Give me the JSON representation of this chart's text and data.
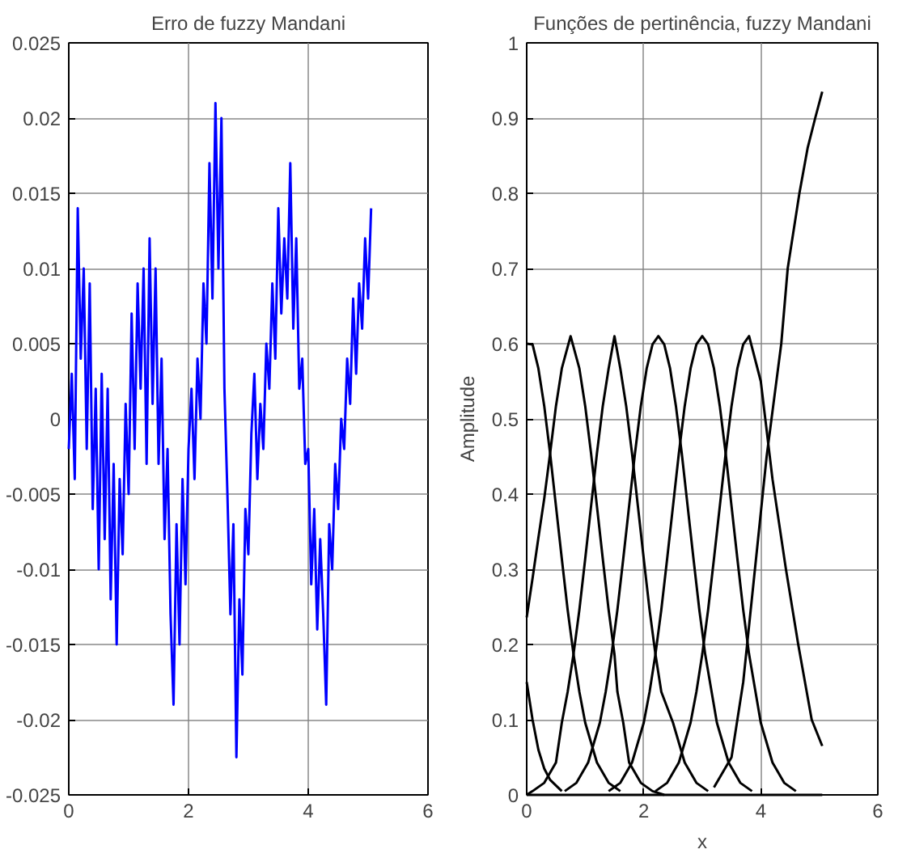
{
  "chart_data": [
    {
      "type": "line",
      "title": "Erro de fuzzy Mandani",
      "xlim": [
        0,
        6
      ],
      "xticks": [
        0,
        2,
        4,
        6
      ],
      "ylim": [
        -0.025,
        0.025
      ],
      "yticks": [
        -0.025,
        -0.02,
        -0.015,
        -0.01,
        -0.005,
        0,
        0.005,
        0.01,
        0.015,
        0.02,
        0.025
      ],
      "grid": true,
      "marker": "none",
      "line_style": "solid",
      "series": [
        {
          "color": "#0000ff",
          "x": [
            0,
            0.05,
            0.1,
            0.15,
            0.2,
            0.25,
            0.3,
            0.35,
            0.4,
            0.45,
            0.5,
            0.55,
            0.6,
            0.65,
            0.7,
            0.75,
            0.8,
            0.85,
            0.9,
            0.95,
            1.0,
            1.05,
            1.1,
            1.15,
            1.2,
            1.25,
            1.3,
            1.35,
            1.4,
            1.45,
            1.5,
            1.55,
            1.6,
            1.65,
            1.7,
            1.75,
            1.8,
            1.85,
            1.9,
            1.95,
            2.0,
            2.05,
            2.1,
            2.15,
            2.2,
            2.25,
            2.3,
            2.35,
            2.4,
            2.45,
            2.5,
            2.55,
            2.6,
            2.65,
            2.7,
            2.75,
            2.8,
            2.85,
            2.9,
            2.95,
            3.0,
            3.05,
            3.1,
            3.15,
            3.2,
            3.25,
            3.3,
            3.35,
            3.4,
            3.45,
            3.5,
            3.55,
            3.6,
            3.65,
            3.7,
            3.75,
            3.8,
            3.85,
            3.9,
            3.95,
            4.0,
            4.05,
            4.1,
            4.15,
            4.2,
            4.25,
            4.3,
            4.35,
            4.4,
            4.45,
            4.5,
            4.55,
            4.6,
            4.65,
            4.7,
            4.75,
            4.8,
            4.85,
            4.9,
            4.95,
            5.0,
            5.05
          ],
          "values": [
            -0.002,
            0.003,
            -0.004,
            0.014,
            0.004,
            0.01,
            -0.002,
            0.009,
            -0.006,
            0.002,
            -0.01,
            0.003,
            -0.008,
            0.002,
            -0.012,
            -0.003,
            -0.015,
            -0.004,
            -0.009,
            0.001,
            -0.005,
            0.007,
            -0.002,
            0.009,
            0.002,
            0.01,
            -0.003,
            0.012,
            0.001,
            0.01,
            -0.003,
            0.004,
            -0.008,
            -0.002,
            -0.013,
            -0.019,
            -0.007,
            -0.015,
            -0.004,
            -0.011,
            -0.002,
            0.002,
            -0.004,
            0.004,
            0.0,
            0.009,
            0.005,
            0.017,
            0.008,
            0.021,
            0.01,
            0.02,
            0.002,
            -0.005,
            -0.013,
            -0.007,
            -0.0225,
            -0.012,
            -0.017,
            -0.006,
            -0.009,
            -0.001,
            0.003,
            -0.004,
            0.001,
            -0.002,
            0.005,
            0.002,
            0.009,
            0.004,
            0.014,
            0.007,
            0.012,
            0.008,
            0.017,
            0.006,
            0.012,
            0.002,
            0.004,
            -0.003,
            -0.002,
            -0.011,
            -0.006,
            -0.014,
            -0.008,
            -0.013,
            -0.019,
            -0.007,
            -0.01,
            -0.003,
            -0.006,
            0.0,
            -0.002,
            0.004,
            0.001,
            0.008,
            0.003,
            0.009,
            0.006,
            0.012,
            0.008,
            0.014
          ]
        }
      ]
    },
    {
      "type": "line",
      "title": "Funções de pertinência, fuzzy Mandani",
      "xlabel": "x",
      "ylabel": "Amplitude",
      "xlim": [
        0,
        6
      ],
      "xticks": [
        0,
        2,
        4,
        6
      ],
      "ylim": [
        0,
        1
      ],
      "yticks": [
        0,
        0.1,
        0.2,
        0.3,
        0.4,
        0.5,
        0.6,
        0.7,
        0.8,
        0.9,
        1
      ],
      "grid": true,
      "marker": "none",
      "line_style": "solid",
      "series": [
        {
          "color": "#000000",
          "x": [
            0,
            0.1,
            0.2,
            0.3,
            0.4,
            0.5,
            0.6,
            0.7,
            0.8,
            0.9,
            1.0,
            1.2,
            1.4,
            1.6
          ],
          "values": [
            0.6,
            0.599,
            0.567,
            0.517,
            0.454,
            0.384,
            0.314,
            0.246,
            0.187,
            0.137,
            0.096,
            0.043,
            0.016,
            0.005
          ]
        },
        {
          "color": "#000000",
          "x": [
            0,
            0.1,
            0.2,
            0.3,
            0.4,
            0.5,
            0.6,
            0.75,
            0.9,
            1.0,
            1.1,
            1.2,
            1.3,
            1.4,
            1.5,
            1.55,
            1.65,
            1.75,
            1.95,
            2.15,
            2.35
          ],
          "values": [
            0.236,
            0.288,
            0.342,
            0.394,
            0.454,
            0.517,
            0.567,
            0.61,
            0.567,
            0.517,
            0.454,
            0.384,
            0.314,
            0.246,
            0.187,
            0.137,
            0.096,
            0.043,
            0.016,
            0.005,
            0.0
          ]
        },
        {
          "color": "#000000",
          "x": [
            0,
            0.1,
            0.3,
            0.5,
            0.6,
            0.7,
            0.8,
            0.9,
            1.0,
            1.1,
            1.2,
            1.3,
            1.4,
            1.5,
            1.6,
            1.7,
            1.8,
            1.9,
            2.0,
            2.1,
            2.2,
            2.3,
            2.5,
            2.7,
            2.9,
            3.1
          ],
          "values": [
            0.0,
            0.005,
            0.016,
            0.043,
            0.096,
            0.137,
            0.187,
            0.246,
            0.314,
            0.384,
            0.454,
            0.517,
            0.567,
            0.61,
            0.567,
            0.517,
            0.454,
            0.384,
            0.314,
            0.246,
            0.187,
            0.137,
            0.096,
            0.043,
            0.016,
            0.005
          ]
        },
        {
          "color": "#000000",
          "x": [
            0.65,
            0.85,
            1.05,
            1.25,
            1.35,
            1.45,
            1.55,
            1.65,
            1.75,
            1.85,
            1.95,
            2.05,
            2.15,
            2.25,
            2.35,
            2.45,
            2.55,
            2.65,
            2.75,
            2.85,
            2.95,
            3.05,
            3.25,
            3.45,
            3.65,
            3.85
          ],
          "values": [
            0.005,
            0.016,
            0.043,
            0.096,
            0.137,
            0.187,
            0.246,
            0.314,
            0.384,
            0.454,
            0.517,
            0.567,
            0.599,
            0.61,
            0.599,
            0.567,
            0.517,
            0.454,
            0.384,
            0.314,
            0.246,
            0.187,
            0.096,
            0.043,
            0.016,
            0.005
          ]
        },
        {
          "color": "#000000",
          "x": [
            1.4,
            1.6,
            1.8,
            2.0,
            2.1,
            2.2,
            2.3,
            2.4,
            2.5,
            2.6,
            2.7,
            2.8,
            2.9,
            3.0,
            3.1,
            3.2,
            3.3,
            3.4,
            3.5,
            3.6,
            3.7,
            3.8,
            4.0,
            4.2,
            4.4,
            4.6
          ],
          "values": [
            0.005,
            0.016,
            0.043,
            0.096,
            0.137,
            0.187,
            0.246,
            0.314,
            0.384,
            0.454,
            0.517,
            0.567,
            0.599,
            0.61,
            0.599,
            0.567,
            0.517,
            0.454,
            0.384,
            0.314,
            0.246,
            0.187,
            0.096,
            0.043,
            0.016,
            0.005
          ]
        },
        {
          "color": "#000000",
          "x": [
            2.2,
            2.4,
            2.6,
            2.8,
            2.9,
            3.0,
            3.1,
            3.2,
            3.3,
            3.4,
            3.5,
            3.6,
            3.7,
            3.8,
            4.0,
            4.2,
            4.43,
            4.64,
            4.87,
            5.05
          ],
          "values": [
            0.005,
            0.016,
            0.043,
            0.096,
            0.137,
            0.187,
            0.246,
            0.314,
            0.384,
            0.454,
            0.517,
            0.567,
            0.599,
            0.61,
            0.55,
            0.42,
            0.3,
            0.2,
            0.1,
            0.065
          ]
        },
        {
          "color": "#000000",
          "x": [
            3.2,
            3.5,
            3.7,
            3.9,
            4.1,
            4.35,
            4.46,
            4.66,
            4.8,
            4.93,
            5.05
          ],
          "values": [
            0.01,
            0.05,
            0.15,
            0.3,
            0.45,
            0.6,
            0.7,
            0.8,
            0.86,
            0.9,
            0.935
          ]
        },
        {
          "color": "#000000",
          "x": [
            0,
            0.1,
            0.2,
            0.3,
            0.4,
            0.6
          ],
          "values": [
            0.15,
            0.1,
            0.06,
            0.035,
            0.02,
            0.005
          ]
        },
        {
          "color": "#000000",
          "x": [
            0,
            5.05
          ],
          "values": [
            0,
            0
          ]
        }
      ]
    }
  ]
}
